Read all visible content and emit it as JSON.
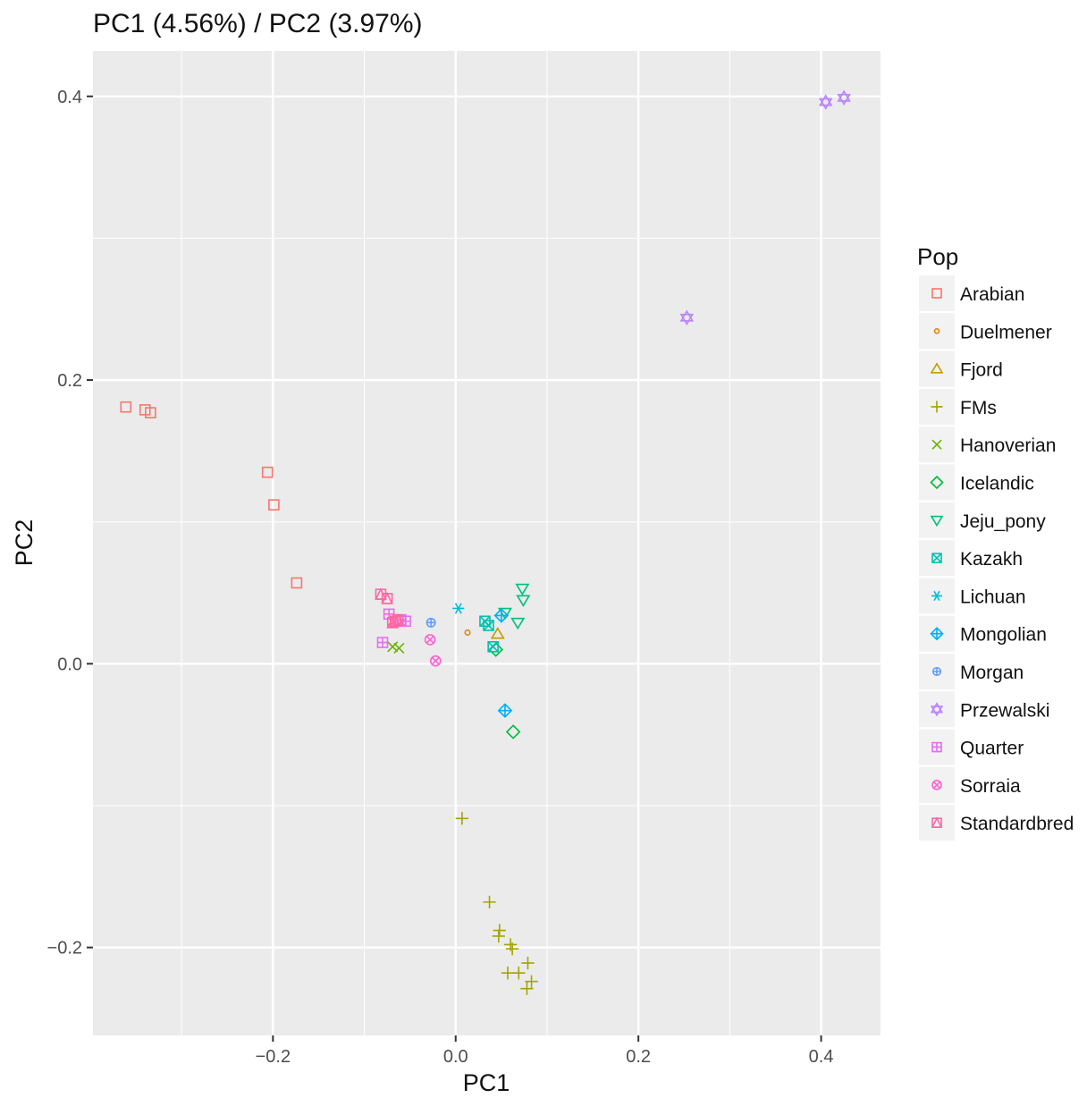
{
  "chart_data": {
    "type": "scatter",
    "title": "PC1 (4.56%) / PC2 (3.97%)",
    "xlabel": "PC1",
    "ylabel": "PC2",
    "xlim": [
      -0.397,
      0.465
    ],
    "ylim": [
      -0.262,
      0.432
    ],
    "xticks": [
      -0.2,
      0.0,
      0.2,
      0.4
    ],
    "xtick_labels": [
      "−0.2",
      "0.0",
      "0.2",
      "0.4"
    ],
    "yticks": [
      -0.2,
      0.0,
      0.2,
      0.4
    ],
    "ytick_labels": [
      "−0.2",
      "0.0",
      "0.2",
      "0.4"
    ],
    "grid": true,
    "legend_position": "right",
    "legend_title": "Pop",
    "series": [
      {
        "name": "Arabian",
        "color": "#F8766D",
        "shape": "square-open",
        "points": [
          [
            -0.361,
            0.181
          ],
          [
            -0.34,
            0.179
          ],
          [
            -0.334,
            0.177
          ],
          [
            -0.206,
            0.135
          ],
          [
            -0.199,
            0.112
          ],
          [
            -0.174,
            0.057
          ]
        ]
      },
      {
        "name": "Duelmener",
        "color": "#E58700",
        "shape": "circle-small",
        "points": [
          [
            0.013,
            0.022
          ]
        ]
      },
      {
        "name": "Fjord",
        "color": "#C99800",
        "shape": "triangle-up",
        "points": [
          [
            0.046,
            0.021
          ]
        ]
      },
      {
        "name": "FMs",
        "color": "#A3A500",
        "shape": "plus",
        "points": [
          [
            0.007,
            -0.109
          ],
          [
            0.037,
            -0.168
          ],
          [
            0.048,
            -0.188
          ],
          [
            0.047,
            -0.192
          ],
          [
            0.06,
            -0.198
          ],
          [
            0.062,
            -0.201
          ],
          [
            0.057,
            -0.218
          ],
          [
            0.069,
            -0.218
          ],
          [
            0.079,
            -0.211
          ],
          [
            0.083,
            -0.224
          ],
          [
            0.078,
            -0.229
          ]
        ]
      },
      {
        "name": "Hanoverian",
        "color": "#6BB100",
        "shape": "cross",
        "points": [
          [
            -0.069,
            0.012
          ],
          [
            -0.062,
            0.011
          ]
        ]
      },
      {
        "name": "Icelandic",
        "color": "#00BA38",
        "shape": "diamond-open",
        "points": [
          [
            0.044,
            0.01
          ],
          [
            0.063,
            -0.048
          ]
        ]
      },
      {
        "name": "Jeju_pony",
        "color": "#00BF7D",
        "shape": "triangle-down",
        "points": [
          [
            0.073,
            0.053
          ],
          [
            0.074,
            0.045
          ],
          [
            0.054,
            0.036
          ],
          [
            0.068,
            0.029
          ]
        ]
      },
      {
        "name": "Kazakh",
        "color": "#00C0AF",
        "shape": "square-cross",
        "points": [
          [
            0.032,
            0.03
          ],
          [
            0.036,
            0.027
          ],
          [
            0.041,
            0.012
          ]
        ]
      },
      {
        "name": "Lichuan",
        "color": "#00BCD8",
        "shape": "asterisk",
        "points": [
          [
            0.003,
            0.039
          ]
        ]
      },
      {
        "name": "Mongolian",
        "color": "#00B0F6",
        "shape": "diamond-plus",
        "points": [
          [
            0.05,
            0.034
          ],
          [
            0.054,
            -0.033
          ]
        ]
      },
      {
        "name": "Morgan",
        "color": "#619CFF",
        "shape": "circle-plus",
        "points": [
          [
            -0.027,
            0.029
          ]
        ]
      },
      {
        "name": "Przewalski",
        "color": "#B983FF",
        "shape": "star-of-david",
        "points": [
          [
            0.405,
            0.396
          ],
          [
            0.425,
            0.399
          ],
          [
            0.253,
            0.244
          ]
        ]
      },
      {
        "name": "Quarter",
        "color": "#E76BF3",
        "shape": "square-plus",
        "points": [
          [
            -0.073,
            0.035
          ],
          [
            -0.06,
            0.031
          ],
          [
            -0.055,
            0.03
          ],
          [
            -0.08,
            0.015
          ]
        ]
      },
      {
        "name": "Sorraia",
        "color": "#FD61D1",
        "shape": "circle-cross",
        "points": [
          [
            -0.028,
            0.017
          ],
          [
            -0.022,
            0.002
          ]
        ]
      },
      {
        "name": "Standardbred",
        "color": "#FF67A4",
        "shape": "square-triangle",
        "points": [
          [
            -0.082,
            0.049
          ],
          [
            -0.075,
            0.046
          ],
          [
            -0.069,
            0.029
          ],
          [
            -0.066,
            0.03
          ],
          [
            -0.063,
            0.031
          ]
        ]
      }
    ]
  }
}
